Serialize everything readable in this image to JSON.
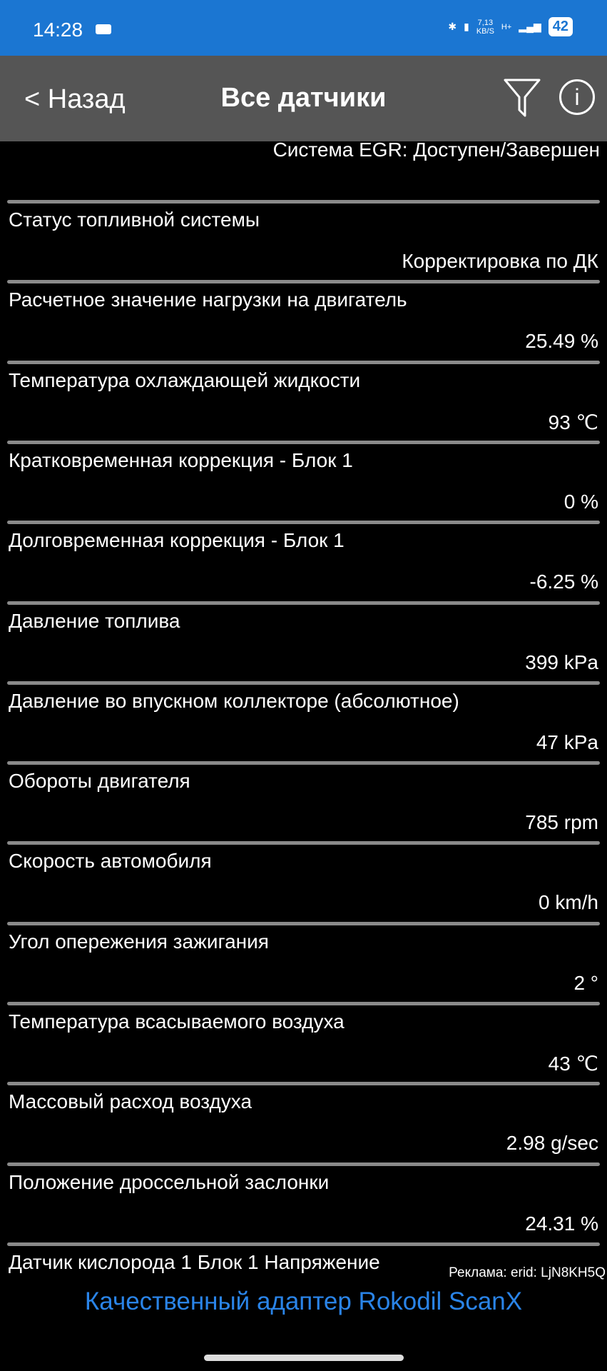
{
  "status_bar": {
    "time": "14:28",
    "speed": "7,13",
    "speed_unit": "KB/S",
    "network": "H+",
    "battery": "42"
  },
  "header": {
    "back_label": "< Назад",
    "title": "Все датчики"
  },
  "first_value": "Система EGR: Доступен/Завершен",
  "sensors": [
    {
      "label": "Статус топливной системы",
      "value": "Корректировка по ДК"
    },
    {
      "label": "Расчетное значение нагрузки на двигатель",
      "value": "25.49 %"
    },
    {
      "label": "Температура охлаждающей жидкости",
      "value": "93 ℃"
    },
    {
      "label": "Кратковременная коррекция - Блок 1",
      "value": "0 %"
    },
    {
      "label": "Долговременная коррекция - Блок 1",
      "value": "-6.25 %"
    },
    {
      "label": "Давление топлива",
      "value": "399 kPa"
    },
    {
      "label": "Давление во впускном коллекторе (абсолютное)",
      "value": "47 kPa"
    },
    {
      "label": "Обороты двигателя",
      "value": "785 rpm"
    },
    {
      "label": "Скорость автомобиля",
      "value": "0 km/h"
    },
    {
      "label": "Угол опережения зажигания",
      "value": "2 °"
    },
    {
      "label": "Температура всасываемого воздуха",
      "value": "43 ℃"
    },
    {
      "label": "Массовый расход воздуха",
      "value": "2.98 g/sec"
    },
    {
      "label": "Положение дроссельной заслонки",
      "value": "24.31 %"
    },
    {
      "label": "Датчик кислорода 1 Блок 1 Напряжение",
      "value": ""
    }
  ],
  "ad": {
    "label": "Реклама: erid: LjN8KH5Q",
    "text": "Качественный адаптер Rokodil ScanX",
    "color": "#2a84e8"
  }
}
